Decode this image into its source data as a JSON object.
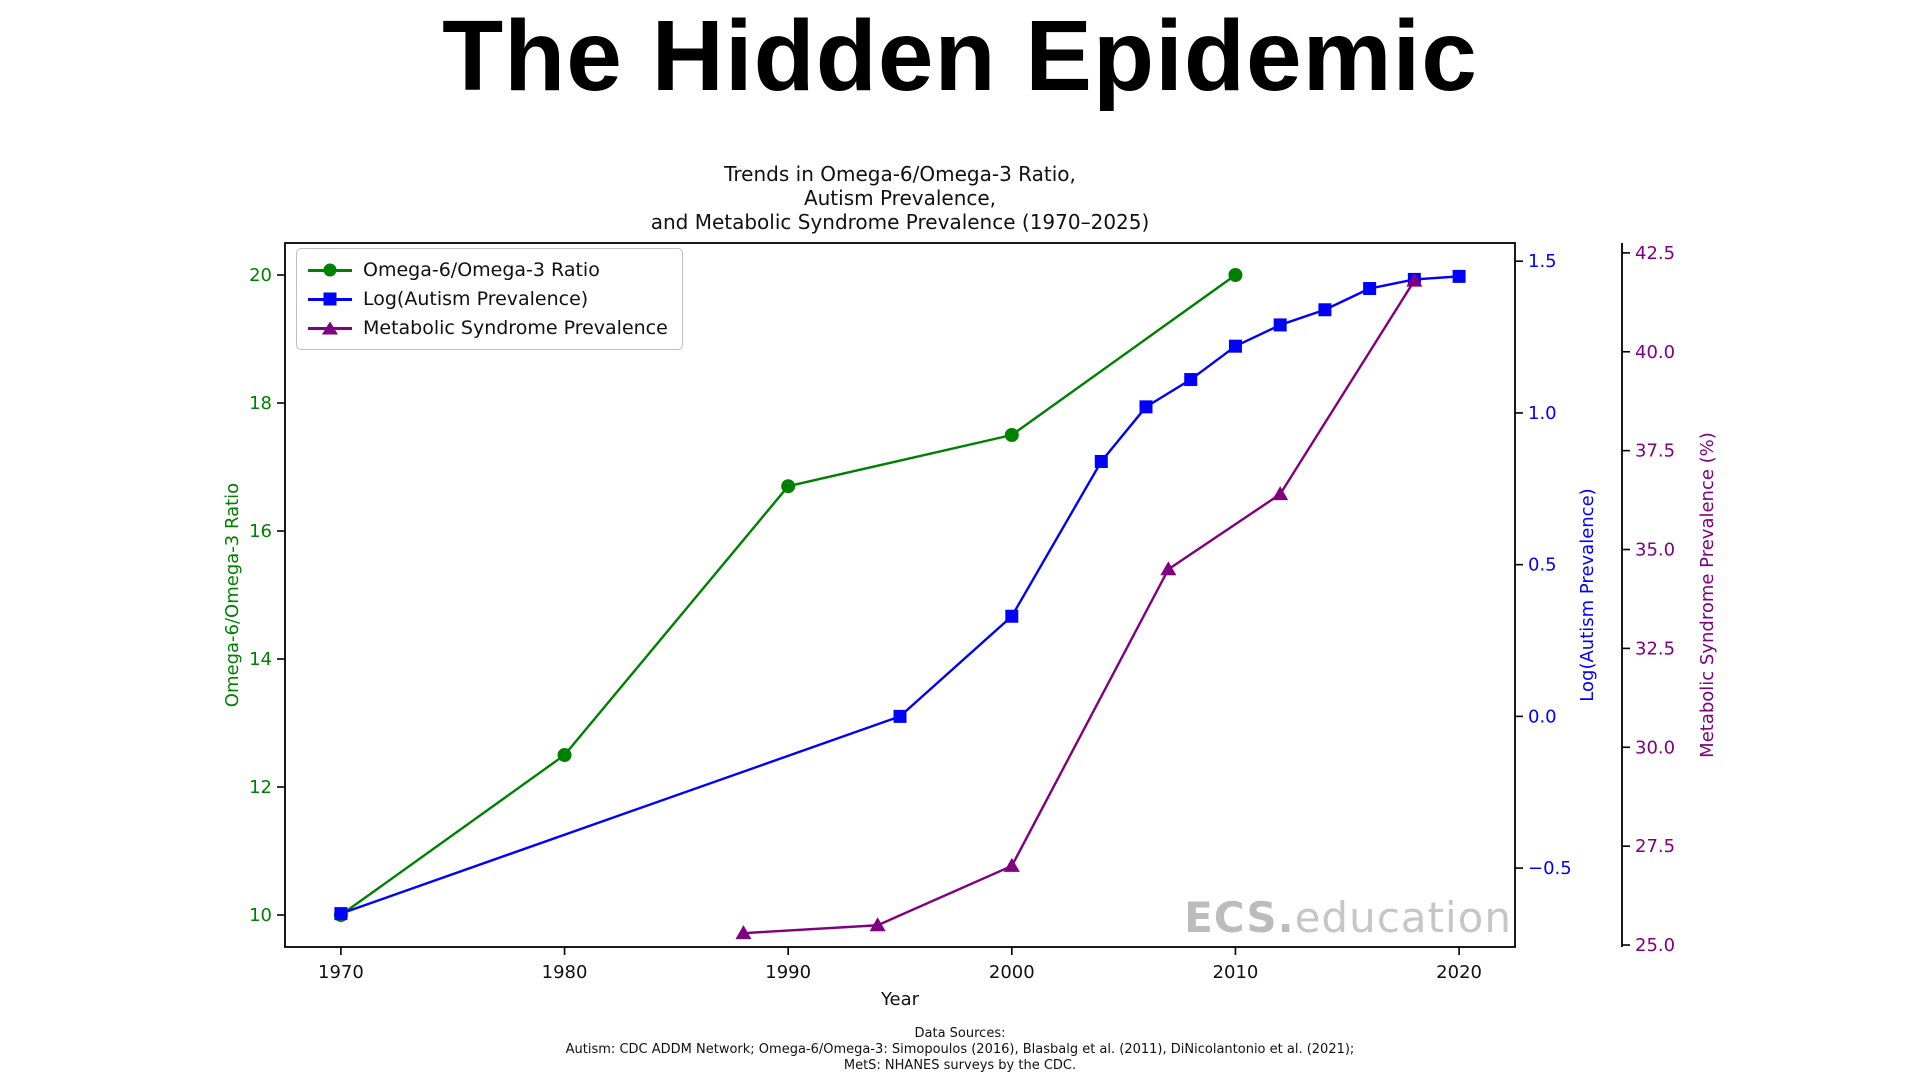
{
  "page": {
    "title": "The Hidden Epidemic"
  },
  "chart_data": {
    "type": "line",
    "title": "The Hidden Epidemic",
    "subtitle": "Trends in Omega-6/Omega-3 Ratio,\nAutism Prevalence,\nand Metabolic Syndrome Prevalence (1970–2025)",
    "xlabel": "Year",
    "grid": false,
    "legend_position": "upper-left",
    "xlim": [
      1967.5,
      2022.5
    ],
    "x_ticks": [
      {
        "v": 1970,
        "label": "1970"
      },
      {
        "v": 1980,
        "label": "1980"
      },
      {
        "v": 1990,
        "label": "1990"
      },
      {
        "v": 2000,
        "label": "2000"
      },
      {
        "v": 2010,
        "label": "2010"
      },
      {
        "v": 2020,
        "label": "2020"
      }
    ],
    "axes": {
      "left": {
        "label": "Omega-6/Omega-3 Ratio",
        "color": "#008000",
        "lim": [
          9.5,
          20.5
        ],
        "ticks": [
          {
            "v": 10,
            "label": "10"
          },
          {
            "v": 12,
            "label": "12"
          },
          {
            "v": 14,
            "label": "14"
          },
          {
            "v": 16,
            "label": "16"
          },
          {
            "v": 18,
            "label": "18"
          },
          {
            "v": 20,
            "label": "20"
          }
        ]
      },
      "right1": {
        "label": "Log(Autism Prevalence)",
        "color": "#0000ff",
        "lim": [
          -0.76,
          1.56
        ],
        "ticks": [
          {
            "v": -0.5,
            "label": "−0.5"
          },
          {
            "v": 0.0,
            "label": "0.0"
          },
          {
            "v": 0.5,
            "label": "0.5"
          },
          {
            "v": 1.0,
            "label": "1.0"
          },
          {
            "v": 1.5,
            "label": "1.5"
          }
        ]
      },
      "right2": {
        "label": "Metabolic Syndrome Prevalence (%)",
        "color": "#800080",
        "lim": [
          24.95,
          42.75
        ],
        "ticks": [
          {
            "v": 25.0,
            "label": "25.0"
          },
          {
            "v": 27.5,
            "label": "27.5"
          },
          {
            "v": 30.0,
            "label": "30.0"
          },
          {
            "v": 32.5,
            "label": "32.5"
          },
          {
            "v": 35.0,
            "label": "35.0"
          },
          {
            "v": 37.5,
            "label": "37.5"
          },
          {
            "v": 40.0,
            "label": "40.0"
          },
          {
            "v": 42.5,
            "label": "42.5"
          }
        ]
      }
    },
    "series": [
      {
        "name": "Omega-6/Omega-3 Ratio",
        "axis": "left",
        "color": "#008000",
        "marker": "circle",
        "points": [
          [
            1970,
            10.0
          ],
          [
            1980,
            12.5
          ],
          [
            1990,
            16.7
          ],
          [
            2000,
            17.5
          ],
          [
            2010,
            20.0
          ]
        ]
      },
      {
        "name": "Log(Autism Prevalence)",
        "axis": "right1",
        "color": "#0000ff",
        "marker": "square",
        "points": [
          [
            1970,
            -0.65
          ],
          [
            1995,
            0.0
          ],
          [
            2000,
            0.33
          ],
          [
            2004,
            0.84
          ],
          [
            2006,
            1.02
          ],
          [
            2008,
            1.11
          ],
          [
            2010,
            1.22
          ],
          [
            2012,
            1.29
          ],
          [
            2014,
            1.34
          ],
          [
            2016,
            1.41
          ],
          [
            2018,
            1.44
          ],
          [
            2020,
            1.45
          ]
        ]
      },
      {
        "name": "Metabolic Syndrome Prevalence",
        "axis": "right2",
        "color": "#800080",
        "marker": "triangle",
        "points": [
          [
            1988,
            25.3
          ],
          [
            1994,
            25.5
          ],
          [
            2000,
            27.0
          ],
          [
            2007,
            34.5
          ],
          [
            2012,
            36.4
          ],
          [
            2018,
            41.8
          ]
        ]
      }
    ],
    "watermark": {
      "bold": "ECS.",
      "light": "education"
    },
    "footnote": "Data Sources:\nAutism: CDC ADDM Network; Omega-6/Omega-3: Simopoulos (2016), Blasbalg et al. (2011), DiNicolantonio et al. (2021);\nMetS: NHANES surveys by the CDC."
  }
}
